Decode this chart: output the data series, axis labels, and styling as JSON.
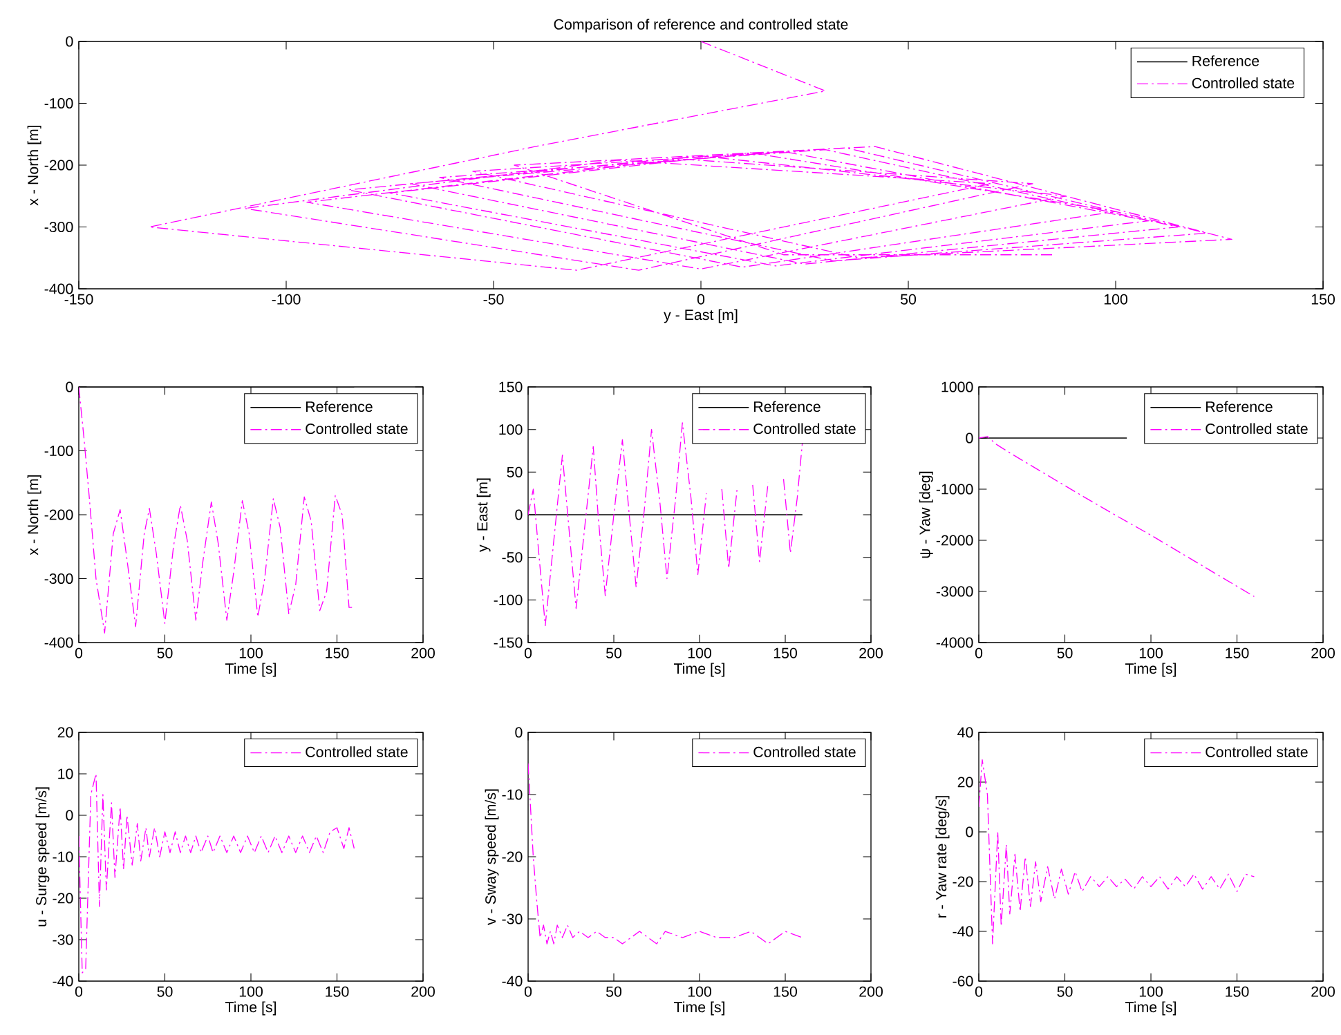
{
  "chart_data": [
    {
      "type": "line",
      "title": "Comparison of reference and controlled state",
      "xlabel": "y - East [m]",
      "ylabel": "x - North [m]",
      "xlim": [
        -150,
        150
      ],
      "ylim": [
        -400,
        0
      ],
      "xticks": [
        -150,
        -100,
        -50,
        0,
        50,
        100,
        150
      ],
      "yticks": [
        -400,
        -300,
        -200,
        -100,
        0
      ],
      "legend": "top right",
      "series": [
        {
          "name": "Reference",
          "color": "#000000",
          "line_style": "solid"
        },
        {
          "name": "Controlled state",
          "color": "#ff00ff",
          "line_style": "dashdot",
          "x": [
            0,
            30,
            -40,
            -133,
            -30,
            70,
            -20,
            -110,
            -15,
            80,
            -5,
            -95,
            0,
            88,
            0,
            -85,
            10,
            100,
            12,
            -75,
            18,
            108,
            20,
            -70,
            25,
            115,
            30,
            -63,
            32,
            122,
            35,
            -55,
            38,
            128,
            42,
            -45,
            20,
            85
          ],
          "values": [
            0,
            -80,
            -170,
            -300,
            -370,
            -230,
            -192,
            -270,
            -370,
            -230,
            -190,
            -260,
            -368,
            -250,
            -185,
            -240,
            -365,
            -275,
            -180,
            -245,
            -363,
            -290,
            -178,
            -230,
            -360,
            -300,
            -175,
            -220,
            -355,
            -310,
            -172,
            -210,
            -350,
            -320,
            -170,
            -200,
            -345,
            -345
          ]
        }
      ]
    },
    {
      "type": "line",
      "xlabel": "Time [s]",
      "ylabel": "x - North [m]",
      "xlim": [
        0,
        200
      ],
      "ylim": [
        -400,
        0
      ],
      "xticks": [
        0,
        50,
        100,
        150,
        200
      ],
      "yticks": [
        -400,
        -300,
        -200,
        -100,
        0
      ],
      "legend": "top right",
      "series": [
        {
          "name": "Reference",
          "color": "#000000",
          "line_style": "solid",
          "x": [
            0,
            160
          ],
          "values": [
            0,
            0
          ]
        },
        {
          "name": "Controlled state",
          "color": "#ff00ff",
          "line_style": "dashdot",
          "x": [
            0,
            3,
            6,
            10,
            15,
            20,
            24,
            28,
            33,
            38,
            41,
            45,
            50,
            55,
            59,
            63,
            68,
            72,
            77,
            81,
            86,
            90,
            95,
            99,
            104,
            108,
            113,
            117,
            122,
            126,
            131,
            135,
            140,
            144,
            149,
            153,
            157,
            160
          ],
          "values": [
            0,
            -80,
            -170,
            -300,
            -385,
            -230,
            -192,
            -270,
            -375,
            -230,
            -190,
            -260,
            -370,
            -250,
            -185,
            -240,
            -365,
            -275,
            -180,
            -245,
            -365,
            -290,
            -178,
            -230,
            -360,
            -300,
            -175,
            -220,
            -355,
            -310,
            -172,
            -210,
            -350,
            -320,
            -170,
            -200,
            -345,
            -345
          ]
        }
      ]
    },
    {
      "type": "line",
      "xlabel": "Time [s]",
      "ylabel": "y - East [m]",
      "xlim": [
        0,
        200
      ],
      "ylim": [
        -150,
        150
      ],
      "xticks": [
        0,
        50,
        100,
        150,
        200
      ],
      "yticks": [
        -150,
        -100,
        -50,
        0,
        50,
        100,
        150
      ],
      "legend": "top right",
      "series": [
        {
          "name": "Reference",
          "color": "#000000",
          "line_style": "solid",
          "x": [
            0,
            160
          ],
          "values": [
            0,
            0
          ]
        },
        {
          "name": "Controlled state",
          "color": "#ff00ff",
          "line_style": "dashdot",
          "x": [
            0,
            3,
            6,
            10,
            15,
            20,
            24,
            28,
            33,
            38,
            41,
            45,
            50,
            55,
            59,
            63,
            68,
            72,
            77,
            81,
            86,
            90,
            95,
            99,
            104,
            108,
            113,
            117,
            122,
            126,
            131,
            135,
            140,
            144,
            149,
            153,
            157,
            160
          ],
          "values": [
            0,
            30,
            -40,
            -130,
            -30,
            70,
            -20,
            -110,
            -15,
            80,
            -5,
            -95,
            0,
            88,
            0,
            -85,
            10,
            100,
            12,
            -75,
            18,
            108,
            20,
            -70,
            25,
            null,
            30,
            -63,
            32,
            null,
            35,
            -55,
            38,
            null,
            42,
            -45,
            20,
            85
          ]
        }
      ]
    },
    {
      "type": "line",
      "xlabel": "Time [s]",
      "ylabel": "ψ - Yaw [deg]",
      "xlim": [
        0,
        200
      ],
      "ylim": [
        -4000,
        1000
      ],
      "xticks": [
        0,
        50,
        100,
        150,
        200
      ],
      "yticks": [
        -4000,
        -3000,
        -2000,
        -1000,
        0,
        1000
      ],
      "legend": "top right",
      "series": [
        {
          "name": "Reference",
          "color": "#000000",
          "line_style": "solid",
          "x": [
            0,
            86
          ],
          "values": [
            0,
            0
          ]
        },
        {
          "name": "Controlled state",
          "color": "#ff00ff",
          "line_style": "dashdot",
          "x": [
            0,
            5,
            10,
            20,
            40,
            60,
            80,
            100,
            120,
            140,
            160
          ],
          "values": [
            0,
            30,
            -120,
            -330,
            -730,
            -1130,
            -1520,
            -1900,
            -2300,
            -2700,
            -3100
          ]
        }
      ]
    },
    {
      "type": "line",
      "xlabel": "Time [s]",
      "ylabel": "u - Surge speed [m/s]",
      "xlim": [
        0,
        200
      ],
      "ylim": [
        -40,
        20
      ],
      "xticks": [
        0,
        50,
        100,
        150,
        200
      ],
      "yticks": [
        -40,
        -30,
        -20,
        -10,
        0,
        10,
        20
      ],
      "legend": "top right",
      "series": [
        {
          "name": "Controlled state",
          "color": "#ff00ff",
          "line_style": "dashdot",
          "x": [
            0,
            2,
            4,
            7,
            10,
            12,
            14,
            16,
            19,
            21,
            24,
            26,
            28,
            31,
            34,
            36,
            39,
            41,
            44,
            47,
            50,
            53,
            56,
            59,
            62,
            65,
            68,
            71,
            75,
            78,
            82,
            86,
            90,
            94,
            98,
            102,
            106,
            110,
            114,
            118,
            122,
            126,
            130,
            134,
            138,
            142,
            146,
            150,
            154,
            157,
            160
          ],
          "values": [
            -5,
            -38,
            -37,
            5,
            10,
            -22,
            5,
            -18,
            3,
            -15,
            2,
            -13,
            0,
            -12,
            -2,
            -11,
            -3,
            -10,
            -3,
            -10,
            -4,
            -9,
            -4,
            -9,
            -5,
            -9,
            -5,
            -9,
            -5,
            -9,
            -5,
            -9,
            -5,
            -9,
            -5,
            -9,
            -5,
            -9,
            -5,
            -9,
            -5,
            -9,
            -5,
            -9,
            -5,
            -9,
            -4,
            -3,
            -8,
            -3,
            -8
          ]
        }
      ]
    },
    {
      "type": "line",
      "xlabel": "Time [s]",
      "ylabel": "v - Sway speed [m/s]",
      "xlim": [
        0,
        200
      ],
      "ylim": [
        -40,
        0
      ],
      "xticks": [
        0,
        50,
        100,
        150,
        200
      ],
      "yticks": [
        -40,
        -30,
        -20,
        -10,
        0
      ],
      "legend": "top right",
      "series": [
        {
          "name": "Controlled state",
          "color": "#ff00ff",
          "line_style": "dashdot",
          "x": [
            0,
            1,
            3,
            5,
            7,
            9,
            11,
            13,
            15,
            17,
            20,
            23,
            26,
            30,
            35,
            40,
            45,
            50,
            55,
            60,
            65,
            70,
            75,
            80,
            90,
            100,
            110,
            120,
            130,
            140,
            150,
            160
          ],
          "values": [
            -5,
            -10,
            -20,
            -27,
            -33,
            -31,
            -34,
            -32,
            -34,
            -31,
            -33,
            -31,
            -33,
            -32,
            -33,
            -32,
            -33,
            -33,
            -34,
            -33,
            -32,
            -33,
            -34,
            -32,
            -33,
            -32,
            -33,
            -33,
            -32,
            -34,
            -32,
            -33
          ]
        }
      ]
    },
    {
      "type": "line",
      "xlabel": "Time [s]",
      "ylabel": "r - Yaw rate [deg/s]",
      "xlim": [
        0,
        200
      ],
      "ylim": [
        -60,
        40
      ],
      "xticks": [
        0,
        50,
        100,
        150,
        200
      ],
      "yticks": [
        -60,
        -40,
        -20,
        0,
        20,
        40
      ],
      "legend": "top right",
      "series": [
        {
          "name": "Controlled state",
          "color": "#ff00ff",
          "line_style": "dashdot",
          "x": [
            0,
            2,
            5,
            8,
            11,
            13,
            16,
            18,
            21,
            24,
            27,
            30,
            33,
            36,
            40,
            44,
            48,
            52,
            56,
            60,
            65,
            70,
            75,
            80,
            85,
            90,
            95,
            100,
            105,
            110,
            115,
            120,
            125,
            130,
            135,
            140,
            145,
            150,
            155,
            160
          ],
          "values": [
            10,
            29,
            15,
            -45,
            0,
            -38,
            -5,
            -33,
            -9,
            -32,
            -10,
            -30,
            -12,
            -28,
            -14,
            -27,
            -15,
            -25,
            -16,
            -24,
            -18,
            -22,
            -18,
            -22,
            -19,
            -23,
            -18,
            -22,
            -18,
            -23,
            -18,
            -22,
            -17,
            -23,
            -18,
            -23,
            -17,
            -24,
            -17,
            -18
          ]
        }
      ]
    }
  ]
}
